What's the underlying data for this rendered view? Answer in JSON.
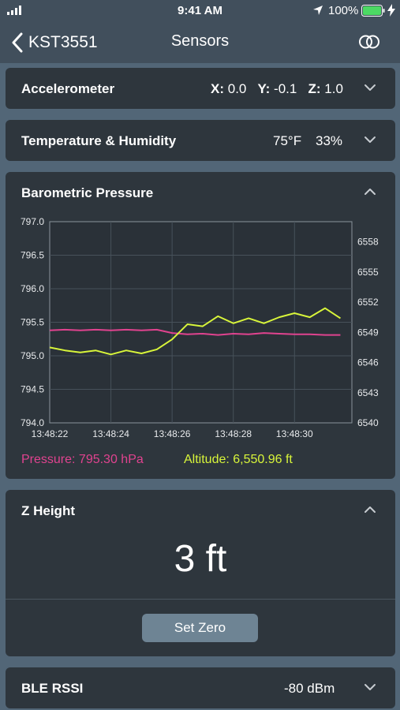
{
  "status_bar": {
    "time": "9:41 AM",
    "battery": "100%"
  },
  "nav": {
    "back_label": "KST3551",
    "title": "Sensors"
  },
  "accelerometer": {
    "label": "Accelerometer",
    "x_label": "X:",
    "x_value": "0.0",
    "y_label": "Y:",
    "y_value": "-0.1",
    "z_label": "Z:",
    "z_value": "1.0"
  },
  "temp_humidity": {
    "label": "Temperature & Humidity",
    "temperature": "75°F",
    "humidity": "33%"
  },
  "barometric": {
    "label": "Barometric Pressure",
    "pressure_legend": "Pressure: 795.30 hPa",
    "altitude_legend": "Altitude: 6,550.96 ft"
  },
  "z_height": {
    "label": "Z Height",
    "value": "3 ft",
    "button": "Set Zero"
  },
  "ble_rssi": {
    "label": "BLE RSSI",
    "value": "-80 dBm"
  },
  "colors": {
    "pressure": "#e0438f",
    "altitude": "#d8f53a",
    "card": "#2e363d",
    "background": "#526677"
  },
  "chart_data": {
    "type": "line",
    "x": [
      "13:48:22",
      "13:48:22.5",
      "13:48:23",
      "13:48:23.5",
      "13:48:24",
      "13:48:24.5",
      "13:48:25",
      "13:48:25.5",
      "13:48:26",
      "13:48:26.5",
      "13:48:27",
      "13:48:27.5",
      "13:48:28",
      "13:48:28.5",
      "13:48:29",
      "13:48:29.5",
      "13:48:30",
      "13:48:30.5",
      "13:48:31",
      "13:48:31.5"
    ],
    "x_ticks": [
      "13:48:22",
      "13:48:24",
      "13:48:26",
      "13:48:28",
      "13:48:30"
    ],
    "y_left": {
      "range": [
        794.0,
        797.0
      ],
      "ticks": [
        "797.0",
        "796.5",
        "796.0",
        "795.5",
        "795.0",
        "794.5",
        "794.0"
      ]
    },
    "y_right": {
      "range": [
        6540,
        6560
      ],
      "ticks": [
        "6558",
        "6555",
        "6552",
        "6549",
        "6546",
        "6543",
        "6540"
      ]
    },
    "grid": true,
    "series": [
      {
        "name": "Pressure",
        "axis": "left",
        "color": "#e0438f",
        "values": [
          795.38,
          795.39,
          795.38,
          795.39,
          795.38,
          795.39,
          795.38,
          795.39,
          795.34,
          795.32,
          795.33,
          795.31,
          795.33,
          795.32,
          795.34,
          795.33,
          795.32,
          795.32,
          795.31,
          795.31
        ]
      },
      {
        "name": "Altitude",
        "axis": "right",
        "color": "#d8f53a",
        "values": [
          6547.5,
          6547.2,
          6547.0,
          6547.2,
          6546.8,
          6547.2,
          6546.9,
          6547.3,
          6548.3,
          6549.8,
          6549.6,
          6550.6,
          6549.9,
          6550.4,
          6549.9,
          6550.5,
          6550.9,
          6550.5,
          6551.4,
          6550.4
        ]
      }
    ]
  }
}
